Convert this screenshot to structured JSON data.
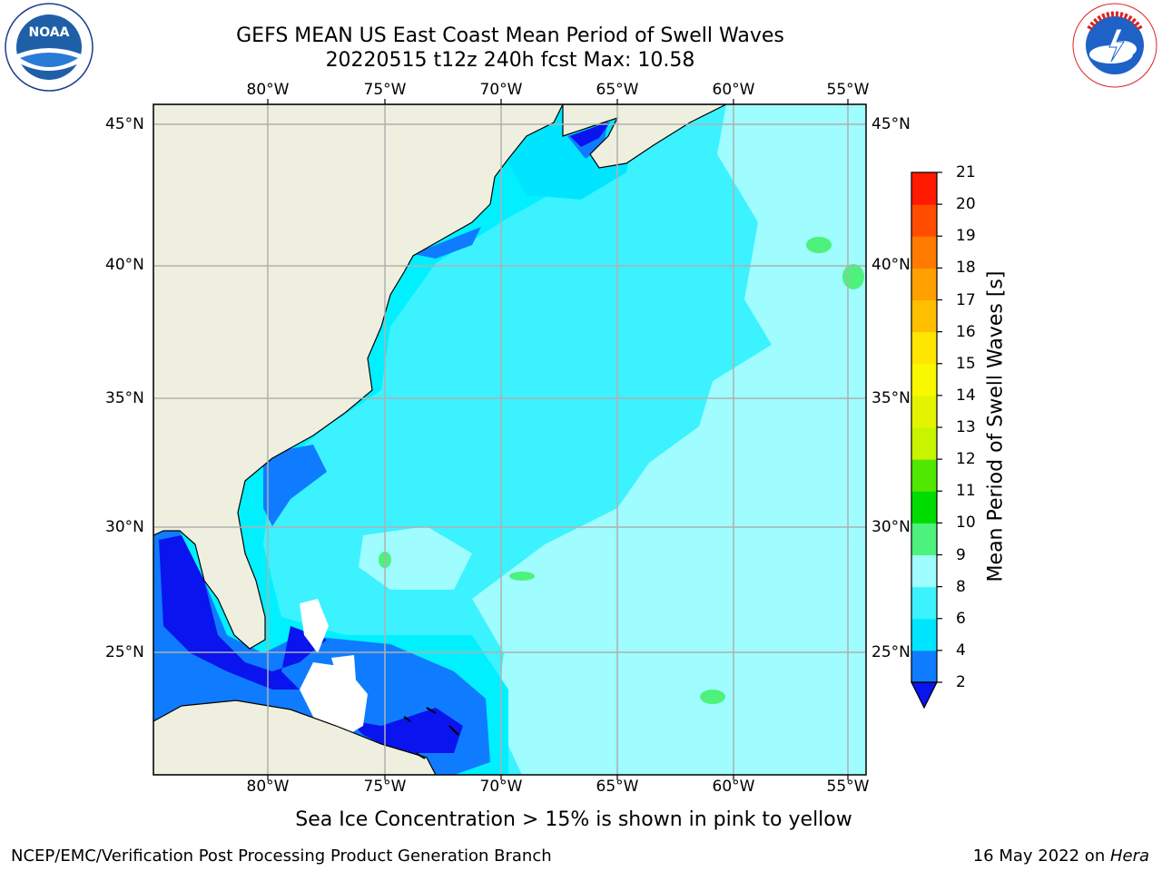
{
  "title_line1": "GEFS MEAN US East Coast Mean Period of Swell Waves",
  "title_line2": "20220515 t12z 240h fcst   Max: 10.58",
  "logos": {
    "left": {
      "icon": "noaa-logo-icon",
      "ring_text": "NATIONAL OCEANIC AND ATMOSPHERIC ADMINISTRATION · U.S. DEPARTMENT OF COMMERCE",
      "center_text": "NOAA"
    },
    "right": {
      "icon": "nws-logo-icon",
      "ring_text": "NATIONAL WEATHER SERVICE"
    }
  },
  "map": {
    "lon_ticks": [
      "80°W",
      "75°W",
      "70°W",
      "65°W",
      "60°W",
      "55°W"
    ],
    "lat_ticks": [
      "45°N",
      "40°N",
      "35°N",
      "30°N",
      "25°N"
    ],
    "colors": {
      "land": "#efefdf",
      "grid": "#b0b0b0",
      "coast": "#000000"
    }
  },
  "colorbar": {
    "title": "Mean Period of Swell Waves [s]",
    "levels": [
      "2",
      "4",
      "6",
      "8",
      "9",
      "10",
      "11",
      "12",
      "13",
      "14",
      "15",
      "16",
      "17",
      "18",
      "19",
      "20",
      "21"
    ],
    "bins": [
      {
        "from": 2,
        "to": 4,
        "color": "#0f7cff"
      },
      {
        "from": 4,
        "to": 6,
        "color": "#00e5ff"
      },
      {
        "from": 6,
        "to": 8,
        "color": "#3cf2ff"
      },
      {
        "from": 8,
        "to": 9,
        "color": "#9ffcff"
      },
      {
        "from": 9,
        "to": 10,
        "color": "#4cf27c"
      },
      {
        "from": 10,
        "to": 11,
        "color": "#00dc00"
      },
      {
        "from": 11,
        "to": 12,
        "color": "#50e800"
      },
      {
        "from": 12,
        "to": 13,
        "color": "#c8f400"
      },
      {
        "from": 13,
        "to": 14,
        "color": "#e4f400"
      },
      {
        "from": 14,
        "to": 15,
        "color": "#f8f800"
      },
      {
        "from": 15,
        "to": 16,
        "color": "#ffe600"
      },
      {
        "from": 16,
        "to": 17,
        "color": "#ffbf00"
      },
      {
        "from": 17,
        "to": 18,
        "color": "#ff9f00"
      },
      {
        "from": 18,
        "to": 19,
        "color": "#ff7a00"
      },
      {
        "from": 19,
        "to": 20,
        "color": "#ff4c00"
      },
      {
        "from": 20,
        "to": 21,
        "color": "#ff1a00"
      }
    ],
    "under_color": "#0a14ee"
  },
  "note": "Sea Ice Concentration > 15% is shown in pink to yellow",
  "footer": {
    "left": "NCEP/EMC/Verification Post Processing Product Generation Branch",
    "right_date": "16 May 2022 on ",
    "right_host": "Hera"
  }
}
